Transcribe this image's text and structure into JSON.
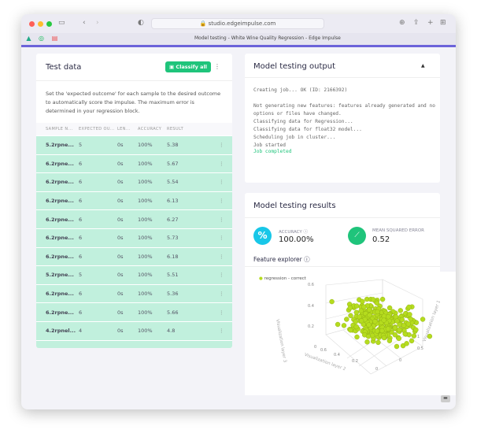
{
  "browser": {
    "url": "studio.edgeimpulse.com",
    "tab_title": "Model testing - White Wine Quality Regression - Edge Impulse"
  },
  "test_data": {
    "title": "Test data",
    "classify_all": "Classify all",
    "description": "Set the 'expected outcome' for each sample to the desired outcome to automatically score the impulse. The maximum error is determined in your regression block.",
    "columns": [
      "SAMPLE N...",
      "EXPECTED OU...",
      "LEN...",
      "ACCURACY",
      "RESULT"
    ],
    "rows": [
      [
        "5.2rpne...",
        "5",
        "0s",
        "100%",
        "5.38"
      ],
      [
        "6.2rpne...",
        "6",
        "0s",
        "100%",
        "5.67"
      ],
      [
        "6.2rpne...",
        "6",
        "0s",
        "100%",
        "5.54"
      ],
      [
        "6.2rpne...",
        "6",
        "0s",
        "100%",
        "6.13"
      ],
      [
        "6.2rpne...",
        "6",
        "0s",
        "100%",
        "6.27"
      ],
      [
        "6.2rpne...",
        "6",
        "0s",
        "100%",
        "5.73"
      ],
      [
        "6.2rpne...",
        "6",
        "0s",
        "100%",
        "6.18"
      ],
      [
        "5.2rpne...",
        "5",
        "0s",
        "100%",
        "5.51"
      ],
      [
        "6.2rpne...",
        "6",
        "0s",
        "100%",
        "5.36"
      ],
      [
        "6.2rpne...",
        "6",
        "0s",
        "100%",
        "5.66"
      ],
      [
        "4.2rpnel...",
        "4",
        "0s",
        "100%",
        "4.8"
      ]
    ],
    "row_color": "#c1f0dd"
  },
  "output": {
    "title": "Model testing output",
    "log": "Creating job... OK (ID: 2166392)\n\nNot generating new features: features already generated and no\noptions or files have changed.\nClassifying data for Regression...\nClassifying data for float32 model...\nScheduling job in cluster...\nJob started",
    "completed": "Job completed"
  },
  "results": {
    "title": "Model testing results",
    "accuracy_label": "ACCURACY",
    "accuracy": "100.00%",
    "mse_label": "MEAN SQUARED ERROR",
    "mse": "0.52",
    "feature_explorer": "Feature explorer",
    "plot": {
      "legend": "regression - correct",
      "point_color": "#b5dc1e",
      "z_label": "Visualization layer 3",
      "x_label": "Visualization layer 2",
      "y_label": "Visualization layer 1",
      "z_ticks": [
        "0.6",
        "0.4",
        "0.2",
        "0"
      ],
      "x_ticks": [
        "0.6",
        "0.4",
        "0.2",
        "0"
      ],
      "y_ticks": [
        "1",
        "0.5",
        "0"
      ]
    }
  },
  "colors": {
    "accent_green": "#1fc47b",
    "accuracy_cyan": "#18c7e8",
    "brand_purple": "#6c63d9"
  }
}
